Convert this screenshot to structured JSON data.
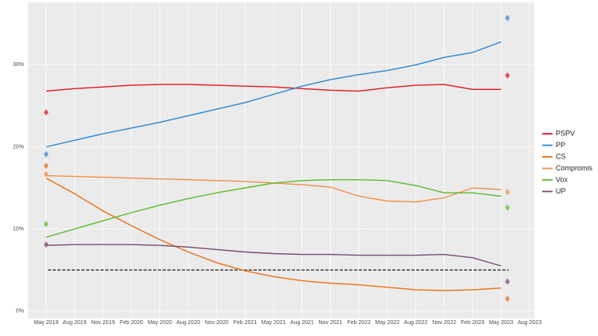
{
  "chart_data": {
    "type": "line",
    "x": [
      "2019-05",
      "2019-08",
      "2019-11",
      "2020-02",
      "2020-05",
      "2020-08",
      "2020-11",
      "2021-02",
      "2021-05",
      "2021-08",
      "2021-11",
      "2022-02",
      "2022-05",
      "2022-08",
      "2022-11",
      "2023-02",
      "2023-05"
    ],
    "series": [
      {
        "name": "PSPV",
        "color": "#e0191f",
        "values": [
          26.8,
          27.1,
          27.3,
          27.5,
          27.6,
          27.6,
          27.5,
          27.4,
          27.3,
          27.1,
          26.9,
          26.8,
          27.2,
          27.5,
          27.6,
          27.0,
          27.0
        ],
        "election": [
          24.2,
          28.7
        ]
      },
      {
        "name": "PP",
        "color": "#2a86d1",
        "values": [
          20.0,
          20.8,
          21.6,
          22.3,
          23.0,
          23.8,
          24.6,
          25.4,
          26.4,
          27.4,
          28.2,
          28.8,
          29.3,
          30.0,
          30.9,
          31.5,
          32.8
        ],
        "election": [
          19.1,
          35.7
        ]
      },
      {
        "name": "CS",
        "color": "#eb6f16",
        "values": [
          16.2,
          14.3,
          12.2,
          10.4,
          8.7,
          7.2,
          5.9,
          4.9,
          4.2,
          3.7,
          3.4,
          3.2,
          2.9,
          2.6,
          2.5,
          2.6,
          2.8
        ],
        "election": [
          17.7,
          1.5
        ]
      },
      {
        "name": "Compromis",
        "color": "#f0904a",
        "values": [
          16.5,
          16.4,
          16.3,
          16.2,
          16.1,
          16.0,
          15.9,
          15.8,
          15.6,
          15.4,
          15.1,
          14.0,
          13.4,
          13.3,
          13.8,
          15.0,
          14.8
        ],
        "election": [
          16.7,
          14.5
        ]
      },
      {
        "name": "Vox",
        "color": "#5cbd2a",
        "values": [
          9.0,
          10.0,
          11.0,
          12.0,
          12.9,
          13.7,
          14.4,
          15.0,
          15.6,
          15.9,
          16.0,
          16.0,
          15.9,
          15.3,
          14.4,
          14.4,
          14.0
        ],
        "election": [
          10.6,
          12.6
        ]
      },
      {
        "name": "UP",
        "color": "#7a4b73",
        "values": [
          8.0,
          8.1,
          8.1,
          8.1,
          8.0,
          7.8,
          7.5,
          7.2,
          7.0,
          6.9,
          6.9,
          6.8,
          6.8,
          6.8,
          6.9,
          6.5,
          5.5
        ],
        "election": [
          8.1,
          3.6
        ]
      }
    ],
    "election_x": [
      "2019-05",
      "2023-05"
    ],
    "threshold": 5,
    "xlim": [
      "2019-04",
      "2023-09"
    ],
    "xticks": [
      {
        "value": "2019-05",
        "label": "May 2019"
      },
      {
        "value": "2019-08",
        "label": "Aug 2019"
      },
      {
        "value": "2019-11",
        "label": "Nov 2019"
      },
      {
        "value": "2020-02",
        "label": "Feb 2020"
      },
      {
        "value": "2020-05",
        "label": "May 2020"
      },
      {
        "value": "2020-08",
        "label": "Aug 2020"
      },
      {
        "value": "2020-11",
        "label": "Nov 2020"
      },
      {
        "value": "2021-02",
        "label": "Feb 2021"
      },
      {
        "value": "2021-05",
        "label": "May 2021"
      },
      {
        "value": "2021-08",
        "label": "Aug 2021"
      },
      {
        "value": "2021-11",
        "label": "Nov 2021"
      },
      {
        "value": "2022-02",
        "label": "Feb 2022"
      },
      {
        "value": "2022-05",
        "label": "May 2022"
      },
      {
        "value": "2022-08",
        "label": "Aug 2022"
      },
      {
        "value": "2022-11",
        "label": "Nov 2022"
      },
      {
        "value": "2023-02",
        "label": "Feb 2023"
      },
      {
        "value": "2023-05",
        "label": "May 2023"
      },
      {
        "value": "2023-08",
        "label": "Aug 2023"
      }
    ],
    "ylim": [
      -0.9,
      37.6
    ],
    "yticks": [
      {
        "value": 0,
        "label": "0%"
      },
      {
        "value": 10,
        "label": "10%"
      },
      {
        "value": 20,
        "label": "20%"
      },
      {
        "value": 30,
        "label": "30%"
      }
    ],
    "grid": true
  }
}
